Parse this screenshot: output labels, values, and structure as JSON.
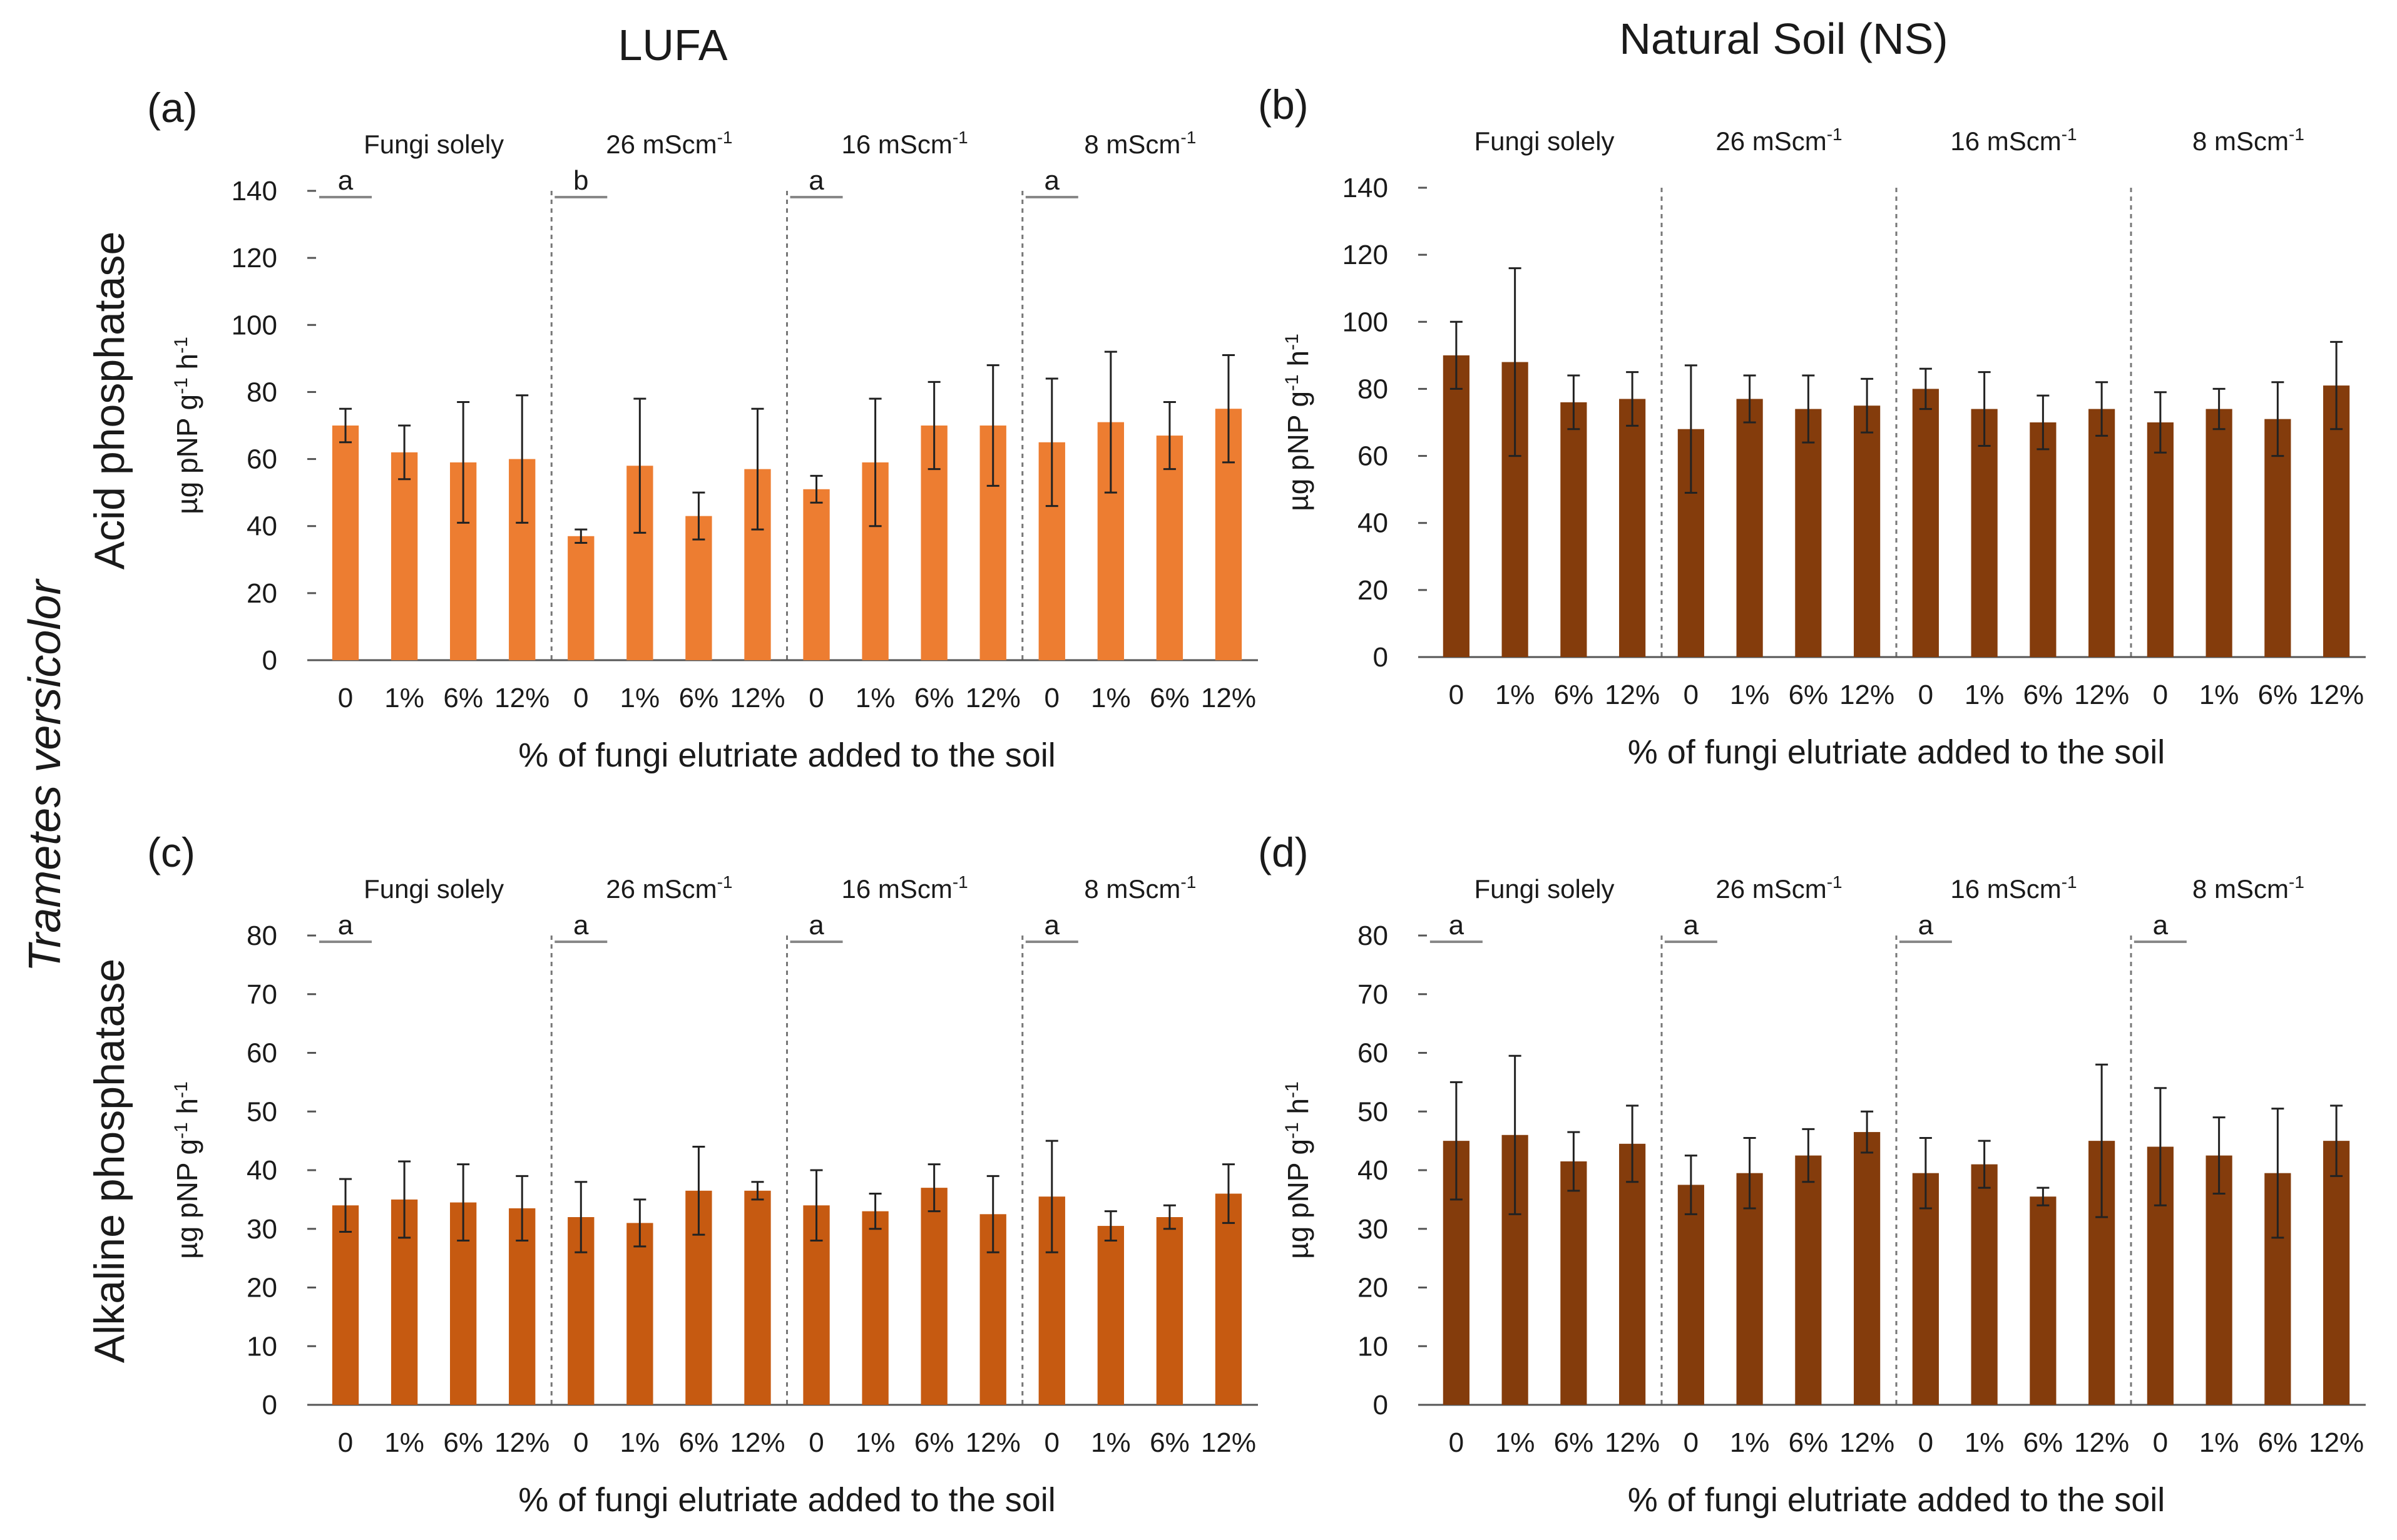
{
  "titles": {
    "col_left": "LUFA",
    "col_right": "Natural Soil (NS)",
    "row_top": "Acid phosphatase",
    "row_bottom": "Alkaline phosphatase",
    "species": "Trametes versicolor"
  },
  "colors": {
    "lufa_bar": "#ED7D31",
    "lufa_alk_bar": "#C65A11",
    "ns_bar": "#843C0C"
  },
  "chart_data": [
    {
      "id": "a",
      "type": "bar",
      "panel_label": "(a)",
      "xlabel": "% of fungi elutriate added to the soil",
      "ylabel": "µg pNP g-1 h-1",
      "ylabel_main": "µg pNP g",
      "ylabel_sup1": "-1",
      "ylabel_mid": " h",
      "ylabel_sup2": "-1",
      "ylim": [
        0,
        140
      ],
      "yticks": [
        0,
        20,
        40,
        60,
        80,
        100,
        120,
        140
      ],
      "categories": [
        "0",
        "1%",
        "6%",
        "12%",
        "0",
        "1%",
        "6%",
        "12%",
        "0",
        "1%",
        "6%",
        "12%",
        "0",
        "1%",
        "6%",
        "12%"
      ],
      "groups": [
        {
          "label": "Fungi solely",
          "unit": "",
          "sup": ""
        },
        {
          "label": "26 mScm",
          "unit": "",
          "sup": "-1"
        },
        {
          "label": "16 mScm",
          "unit": "",
          "sup": "-1"
        },
        {
          "label": "8 mScm",
          "unit": "",
          "sup": "-1"
        }
      ],
      "letters": [
        "a",
        "b",
        "a",
        "a"
      ],
      "values": [
        70,
        62,
        59,
        60,
        37,
        58,
        43,
        57,
        51,
        59,
        70,
        70,
        65,
        71,
        67,
        75
      ],
      "errors": [
        5,
        8,
        18,
        19,
        2,
        20,
        7,
        18,
        4,
        19,
        13,
        18,
        19,
        21,
        10,
        16
      ],
      "color": "#ED7D31"
    },
    {
      "id": "b",
      "type": "bar",
      "panel_label": "(b)",
      "xlabel": "% of fungi elutriate added to the soil",
      "ylabel": "µg pNP g-1 h-1",
      "ylabel_main": "µg pNP g",
      "ylabel_sup1": "-1",
      "ylabel_mid": " h",
      "ylabel_sup2": "-1",
      "ylim": [
        0,
        140
      ],
      "yticks": [
        0,
        20,
        40,
        60,
        80,
        100,
        120,
        140
      ],
      "categories": [
        "0",
        "1%",
        "6%",
        "12%",
        "0",
        "1%",
        "6%",
        "12%",
        "0",
        "1%",
        "6%",
        "12%",
        "0",
        "1%",
        "6%",
        "12%"
      ],
      "groups": [
        {
          "label": "Fungi solely",
          "unit": "",
          "sup": ""
        },
        {
          "label": "26 mScm",
          "unit": "",
          "sup": "-1"
        },
        {
          "label": "16 mScm",
          "unit": "",
          "sup": "-1"
        },
        {
          "label": "8 mScm",
          "unit": "",
          "sup": "-1"
        }
      ],
      "letters": [],
      "values": [
        90,
        88,
        76,
        77,
        68,
        77,
        74,
        75,
        80,
        74,
        70,
        74,
        70,
        74,
        71,
        81
      ],
      "errors": [
        10,
        28,
        8,
        8,
        19,
        7,
        10,
        8,
        6,
        11,
        8,
        8,
        9,
        6,
        11,
        13
      ],
      "color": "#843C0C"
    },
    {
      "id": "c",
      "type": "bar",
      "panel_label": "(c)",
      "xlabel": "% of fungi elutriate added to the soil",
      "ylabel": "µg pNP g-1 h-1",
      "ylabel_main": "µg pNP g",
      "ylabel_sup1": "-1",
      "ylabel_mid": " h",
      "ylabel_sup2": "-1",
      "ylim": [
        0,
        80
      ],
      "yticks": [
        0,
        10,
        20,
        30,
        40,
        50,
        60,
        70,
        80
      ],
      "categories": [
        "0",
        "1%",
        "6%",
        "12%",
        "0",
        "1%",
        "6%",
        "12%",
        "0",
        "1%",
        "6%",
        "12%",
        "0",
        "1%",
        "6%",
        "12%"
      ],
      "groups": [
        {
          "label": "Fungi solely",
          "unit": "",
          "sup": ""
        },
        {
          "label": "26 mScm",
          "unit": "",
          "sup": "-1"
        },
        {
          "label": "16 mScm",
          "unit": "",
          "sup": "-1"
        },
        {
          "label": "8 mScm",
          "unit": "",
          "sup": "-1"
        }
      ],
      "letters": [
        "a",
        "a",
        "a",
        "a"
      ],
      "values": [
        34,
        35,
        34.5,
        33.5,
        32,
        31,
        36.5,
        36.5,
        34,
        33,
        37,
        32.5,
        35.5,
        30.5,
        32,
        36
      ],
      "errors": [
        4.5,
        6.5,
        6.5,
        5.5,
        6,
        4,
        7.5,
        1.5,
        6,
        3,
        4,
        6.5,
        9.5,
        2.5,
        2,
        5
      ],
      "color": "#C65A11"
    },
    {
      "id": "d",
      "type": "bar",
      "panel_label": "(d)",
      "xlabel": "% of fungi elutriate added to the soil",
      "ylabel": "µg pNP g-1 h-1",
      "ylabel_main": "µg pNP g",
      "ylabel_sup1": "-1",
      "ylabel_mid": " h",
      "ylabel_sup2": "-1",
      "ylim": [
        0,
        80
      ],
      "yticks": [
        0,
        10,
        20,
        30,
        40,
        50,
        60,
        70,
        80
      ],
      "categories": [
        "0",
        "1%",
        "6%",
        "12%",
        "0",
        "1%",
        "6%",
        "12%",
        "0",
        "1%",
        "6%",
        "12%",
        "0",
        "1%",
        "6%",
        "12%"
      ],
      "groups": [
        {
          "label": "Fungi solely",
          "unit": "",
          "sup": ""
        },
        {
          "label": "26 mScm",
          "unit": "",
          "sup": "-1"
        },
        {
          "label": "16 mScm",
          "unit": "",
          "sup": "-1"
        },
        {
          "label": "8 mScm",
          "unit": "",
          "sup": "-1"
        }
      ],
      "letters": [
        "a",
        "a",
        "a",
        "a"
      ],
      "values": [
        45,
        46,
        41.5,
        44.5,
        37.5,
        39.5,
        42.5,
        46.5,
        39.5,
        41,
        35.5,
        45,
        44,
        42.5,
        39.5,
        45
      ],
      "errors": [
        10,
        13.5,
        5,
        6.5,
        5,
        6,
        4.5,
        3.5,
        6,
        4,
        1.5,
        13,
        10,
        6.5,
        11,
        6
      ],
      "color": "#843C0C"
    }
  ]
}
